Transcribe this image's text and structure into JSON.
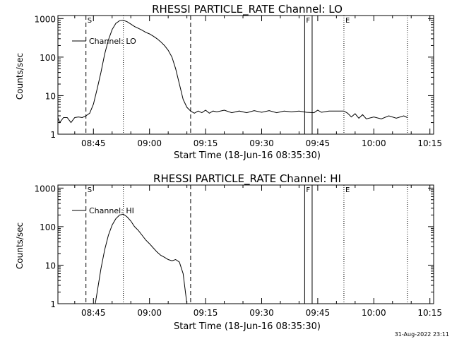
{
  "footer": {
    "date_stamp": "31-Aug-2022 23:11"
  },
  "chart_data": [
    {
      "type": "line",
      "title": "RHESSI PARTICLE_RATE Channel: LO",
      "xlabel": "Start Time (18-Jun-16 08:35:30)",
      "ylabel": "Counts/sec",
      "y_scale": "log",
      "ylim": [
        1,
        1200
      ],
      "xlim": [
        "08:35:30",
        "10:16:00"
      ],
      "x_ticks": [
        "08:45",
        "09:00",
        "09:15",
        "09:30",
        "09:45",
        "10:00",
        "10:15"
      ],
      "y_ticks": [
        "1",
        "10",
        "100",
        "1000"
      ],
      "legend": "Channel: LO",
      "markers": [
        {
          "label": "S",
          "time": "08:43:00",
          "style": "dashed"
        },
        {
          "label": "",
          "time": "08:53:00",
          "style": "dotted"
        },
        {
          "label": "",
          "time": "09:11:00",
          "style": "dashed"
        },
        {
          "label": "F",
          "time": "09:41:30",
          "style": "solid"
        },
        {
          "label": "",
          "time": "09:43:30",
          "style": "solid"
        },
        {
          "label": "E",
          "time": "09:52:00",
          "style": "dotted"
        },
        {
          "label": "",
          "time": "10:09:00",
          "style": "dotted"
        }
      ],
      "series": [
        {
          "name": "Channel: LO",
          "points": [
            [
              "08:35:30",
              2.7
            ],
            [
              "08:36:00",
              2.0
            ],
            [
              "08:37:00",
              2.7
            ],
            [
              "08:38:00",
              2.7
            ],
            [
              "08:39:00",
              2.0
            ],
            [
              "08:40:00",
              2.7
            ],
            [
              "08:41:00",
              2.8
            ],
            [
              "08:42:00",
              2.7
            ],
            [
              "08:43:00",
              3.0
            ],
            [
              "08:44:00",
              3.5
            ],
            [
              "08:45:00",
              6.0
            ],
            [
              "08:46:00",
              15.0
            ],
            [
              "08:47:00",
              40.0
            ],
            [
              "08:48:00",
              120.0
            ],
            [
              "08:49:00",
              280.0
            ],
            [
              "08:50:00",
              520.0
            ],
            [
              "08:51:00",
              750.0
            ],
            [
              "08:52:00",
              880.0
            ],
            [
              "08:53:00",
              900.0
            ],
            [
              "08:54:00",
              830.0
            ],
            [
              "08:55:00",
              720.0
            ],
            [
              "08:56:00",
              620.0
            ],
            [
              "08:57:00",
              560.0
            ],
            [
              "08:58:00",
              500.0
            ],
            [
              "08:59:00",
              440.0
            ],
            [
              "09:00:00",
              400.0
            ],
            [
              "09:01:00",
              350.0
            ],
            [
              "09:02:00",
              300.0
            ],
            [
              "09:03:00",
              250.0
            ],
            [
              "09:04:00",
              200.0
            ],
            [
              "09:05:00",
              150.0
            ],
            [
              "09:06:00",
              100.0
            ],
            [
              "09:07:00",
              50.0
            ],
            [
              "09:08:00",
              20.0
            ],
            [
              "09:09:00",
              8.0
            ],
            [
              "09:10:00",
              5.0
            ],
            [
              "09:11:00",
              4.0
            ],
            [
              "09:12:00",
              3.5
            ],
            [
              "09:13:00",
              4.0
            ],
            [
              "09:14:00",
              3.6
            ],
            [
              "09:15:00",
              4.2
            ],
            [
              "09:16:00",
              3.5
            ],
            [
              "09:17:00",
              4.0
            ],
            [
              "09:18:00",
              3.8
            ],
            [
              "09:20:00",
              4.2
            ],
            [
              "09:22:00",
              3.6
            ],
            [
              "09:24:00",
              4.0
            ],
            [
              "09:26:00",
              3.6
            ],
            [
              "09:28:00",
              4.1
            ],
            [
              "09:30:00",
              3.7
            ],
            [
              "09:32:00",
              4.1
            ],
            [
              "09:34:00",
              3.6
            ],
            [
              "09:36:00",
              4.0
            ],
            [
              "09:38:00",
              3.8
            ],
            [
              "09:40:00",
              4.0
            ],
            [
              "09:42:00",
              3.7
            ],
            [
              "09:44:00",
              3.6
            ],
            [
              "09:45:00",
              4.2
            ],
            [
              "09:46:00",
              3.7
            ],
            [
              "09:48:00",
              4.0
            ],
            [
              "09:50:00",
              4.0
            ],
            [
              "09:52:00",
              4.0
            ],
            [
              "09:53:00",
              3.5
            ],
            [
              "09:54:00",
              2.8
            ],
            [
              "09:55:00",
              3.4
            ],
            [
              "09:56:00",
              2.6
            ],
            [
              "09:57:00",
              3.2
            ],
            [
              "09:58:00",
              2.5
            ],
            [
              "10:00:00",
              2.8
            ],
            [
              "10:02:00",
              2.5
            ],
            [
              "10:04:00",
              3.0
            ],
            [
              "10:06:00",
              2.6
            ],
            [
              "10:08:00",
              3.0
            ],
            [
              "10:09:00",
              2.7
            ]
          ]
        }
      ]
    },
    {
      "type": "line",
      "title": "RHESSI PARTICLE_RATE Channel: HI",
      "xlabel": "Start Time (18-Jun-16 08:35:30)",
      "ylabel": "Counts/sec",
      "y_scale": "log",
      "ylim": [
        1,
        1200
      ],
      "xlim": [
        "08:35:30",
        "10:16:00"
      ],
      "x_ticks": [
        "08:45",
        "09:00",
        "09:15",
        "09:30",
        "09:45",
        "10:00",
        "10:15"
      ],
      "y_ticks": [
        "1",
        "10",
        "100",
        "1000"
      ],
      "legend": "Channel: HI",
      "markers": [
        {
          "label": "S",
          "time": "08:43:00",
          "style": "dashed"
        },
        {
          "label": "",
          "time": "08:53:00",
          "style": "dotted"
        },
        {
          "label": "",
          "time": "09:11:00",
          "style": "dashed"
        },
        {
          "label": "F",
          "time": "09:41:30",
          "style": "solid"
        },
        {
          "label": "",
          "time": "09:43:30",
          "style": "solid"
        },
        {
          "label": "E",
          "time": "09:52:00",
          "style": "dotted"
        },
        {
          "label": "",
          "time": "10:09:00",
          "style": "dotted"
        }
      ],
      "series": [
        {
          "name": "Channel: HI",
          "points": [
            [
              "08:45:30",
              1.0
            ],
            [
              "08:46:00",
              2.0
            ],
            [
              "08:47:00",
              8.0
            ],
            [
              "08:48:00",
              25.0
            ],
            [
              "08:49:00",
              60.0
            ],
            [
              "08:50:00",
              110.0
            ],
            [
              "08:51:00",
              160.0
            ],
            [
              "08:52:00",
              200.0
            ],
            [
              "08:53:00",
              210.0
            ],
            [
              "08:54:00",
              180.0
            ],
            [
              "08:55:00",
              140.0
            ],
            [
              "08:56:00",
              100.0
            ],
            [
              "08:57:00",
              80.0
            ],
            [
              "08:58:00",
              60.0
            ],
            [
              "08:59:00",
              45.0
            ],
            [
              "09:00:00",
              36.0
            ],
            [
              "09:01:00",
              28.0
            ],
            [
              "09:02:00",
              22.0
            ],
            [
              "09:03:00",
              18.0
            ],
            [
              "09:04:00",
              16.0
            ],
            [
              "09:05:00",
              14.0
            ],
            [
              "09:06:00",
              13.0
            ],
            [
              "09:07:00",
              14.0
            ],
            [
              "09:08:00",
              12.0
            ],
            [
              "09:09:00",
              6.0
            ],
            [
              "09:10:00",
              1.0
            ]
          ]
        }
      ]
    }
  ]
}
